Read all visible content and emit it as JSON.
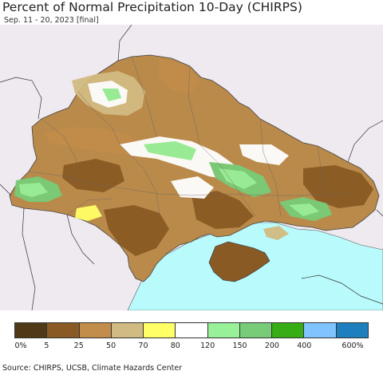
{
  "title": "Percent of Normal Precipitation 10-Day (CHIRPS)",
  "subtitle": "Sep. 11 - 20, 2023 [final]",
  "source": "Source: CHIRPS, UCSB, Climate Hazards Center",
  "legend": {
    "colors": [
      "#4e3a17",
      "#8a5a24",
      "#c28c4a",
      "#d2bb82",
      "#ffff66",
      "#ffffff",
      "#98f098",
      "#78cc78",
      "#36ad14",
      "#80c4ff",
      "#1e7fbe"
    ],
    "labels": [
      "0%",
      "5",
      "25",
      "50",
      "70",
      "80",
      "120",
      "150",
      "200",
      "400",
      "600%"
    ]
  },
  "map": {
    "land_color": "#efe9f0",
    "sea_color": "#b9fbfc",
    "country_fill": "#b98a4a"
  }
}
